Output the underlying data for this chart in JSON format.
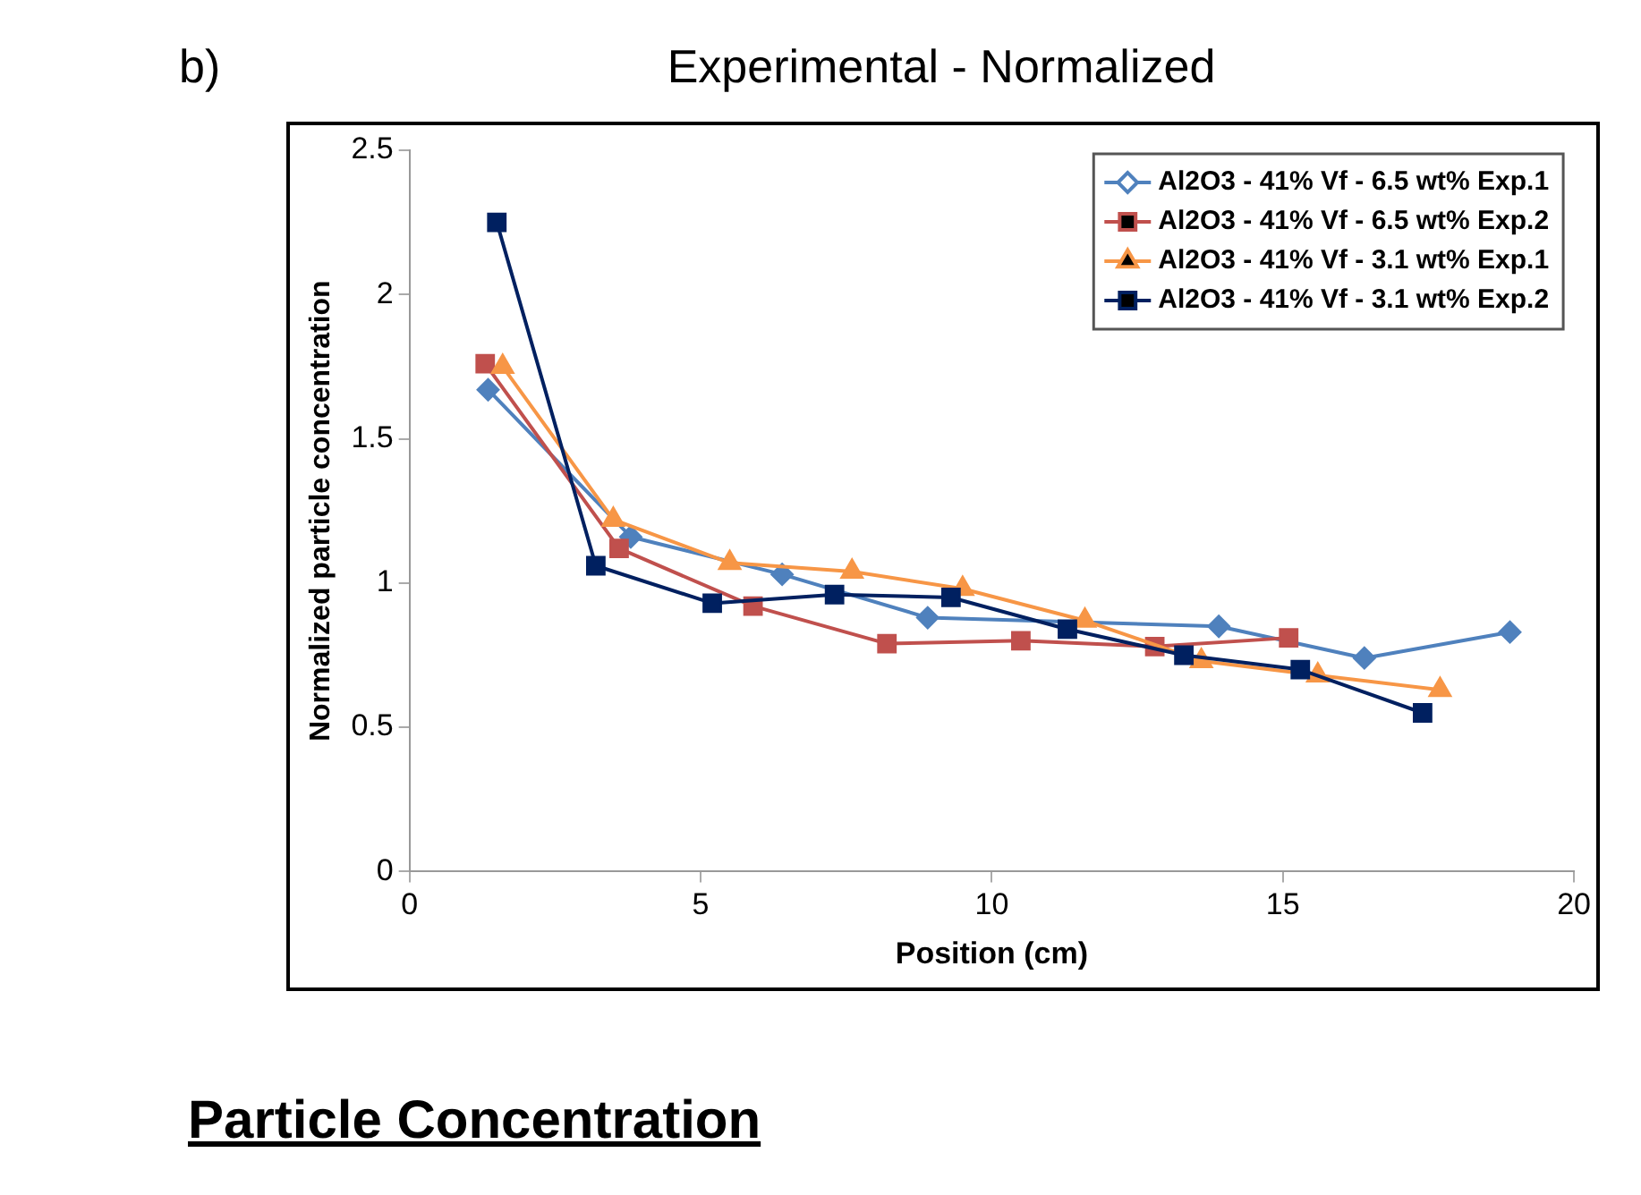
{
  "chart_data": {
    "type": "line",
    "title": "Experimental - Normalized",
    "subtitle": "b)",
    "xlabel": "Position (cm)",
    "ylabel": "Normalized particle concentration",
    "annotations": [
      "Particle Concentration"
    ],
    "xlim": [
      0,
      20
    ],
    "xticks": [
      0,
      5,
      10,
      15,
      20
    ],
    "ylim": [
      0,
      2.5
    ],
    "yticks": [
      0,
      0.5,
      1,
      1.5,
      2,
      2.5
    ],
    "grid": false,
    "legend": "top right",
    "line_style": "solid",
    "series": [
      {
        "name": "Al2O3 - 41% Vf - 6.5 wt% Exp.1",
        "color": "#4f81bd",
        "marker": "diamond",
        "x": [
          1.35,
          3.8,
          6.4,
          8.9,
          11.4,
          13.9,
          16.4,
          18.9
        ],
        "values": [
          1.67,
          1.16,
          1.03,
          0.88,
          null,
          0.85,
          0.74,
          0.83
        ]
      },
      {
        "name": "Al2O3 - 41% Vf - 6.5 wt% Exp.2",
        "color": "#c0504d",
        "marker": "square",
        "x": [
          1.3,
          3.6,
          5.9,
          8.2,
          10.5,
          12.8,
          15.1
        ],
        "values": [
          1.76,
          1.12,
          0.92,
          0.79,
          0.8,
          0.78,
          0.81
        ]
      },
      {
        "name": "Al2O3 - 41% Vf - 3.1 wt% Exp.1",
        "color": "#f79646",
        "marker": "triangle",
        "x": [
          1.6,
          3.5,
          5.5,
          7.6,
          9.5,
          11.6,
          13.6,
          15.6,
          17.7
        ],
        "values": [
          1.75,
          1.22,
          1.07,
          1.04,
          0.98,
          0.87,
          0.73,
          0.68,
          0.63
        ]
      },
      {
        "name": "Al2O3 - 41% Vf - 3.1 wt% Exp.2",
        "color": "#002060",
        "marker": "square",
        "x": [
          1.5,
          3.2,
          5.2,
          7.3,
          9.3,
          11.3,
          13.3,
          15.3,
          17.4
        ],
        "values": [
          2.25,
          1.06,
          0.93,
          0.96,
          0.95,
          0.84,
          0.75,
          0.7,
          0.55
        ]
      }
    ]
  }
}
